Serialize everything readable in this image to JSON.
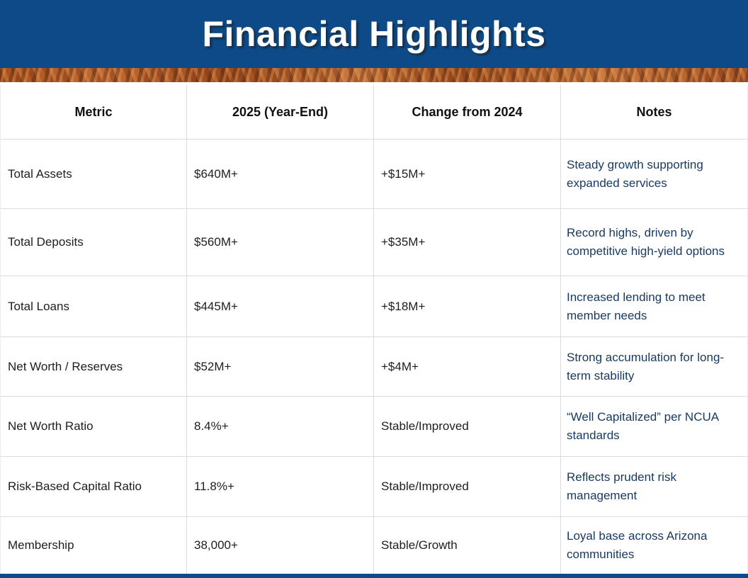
{
  "page": {
    "title": "Financial Highlights"
  },
  "colors": {
    "banner_blue": "#0d4a87",
    "copper_accent": "#b35c2b",
    "bottom_bar_blue": "#0d4a87",
    "body_text": "#1e1e1e",
    "notes_text": "#17395f",
    "grid_line": "#dcdcdc"
  },
  "table": {
    "columns": [
      "Metric",
      "2025 (Year-End)",
      "Change from 2024",
      "Notes"
    ],
    "rows": [
      {
        "metric": "Total Assets",
        "value": "$640M+",
        "change": "+$15M+",
        "notes": "Steady growth supporting expanded services"
      },
      {
        "metric": "Total Deposits",
        "value": "$560M+",
        "change": "+$35M+",
        "notes": "Record highs, driven by competitive high-yield options"
      },
      {
        "metric": "Total Loans",
        "value": "$445M+",
        "change": "+$18M+",
        "notes": "Increased lending to meet member needs"
      },
      {
        "metric": "Net Worth / Reserves",
        "value": "$52M+",
        "change": "+$4M+",
        "notes": "Strong accumulation for long-term stability"
      },
      {
        "metric": "Net Worth Ratio",
        "value": "8.4%+",
        "change": "Stable/Improved",
        "notes": "“Well Capitalized” per NCUA standards"
      },
      {
        "metric": "Risk-Based Capital Ratio",
        "value": "11.8%+",
        "change": "Stable/Improved",
        "notes": "Reflects prudent risk management"
      },
      {
        "metric": "Membership",
        "value": "38,000+",
        "change": "Stable/Growth",
        "notes": "Loyal base across Arizona communities"
      }
    ]
  },
  "chart_data": {
    "type": "table",
    "title": "Financial Highlights",
    "columns": [
      "Metric",
      "2025 (Year-End)",
      "Change from 2024",
      "Notes"
    ],
    "rows": [
      [
        "Total Assets",
        "$640M+",
        "+$15M+",
        "Steady growth supporting expanded services"
      ],
      [
        "Total Deposits",
        "$560M+",
        "+$35M+",
        "Record highs, driven by competitive high-yield options"
      ],
      [
        "Total Loans",
        "$445M+",
        "+$18M+",
        "Increased lending to meet member needs"
      ],
      [
        "Net Worth / Reserves",
        "$52M+",
        "+$4M+",
        "Strong accumulation for long-term stability"
      ],
      [
        "Net Worth Ratio",
        "8.4%+",
        "Stable/Improved",
        "“Well Capitalized” per NCUA standards"
      ],
      [
        "Risk-Based Capital Ratio",
        "11.8%+",
        "Stable/Improved",
        "Reflects prudent risk management"
      ],
      [
        "Membership",
        "38,000+",
        "Stable/Growth",
        "Loyal base across Arizona communities"
      ]
    ]
  }
}
